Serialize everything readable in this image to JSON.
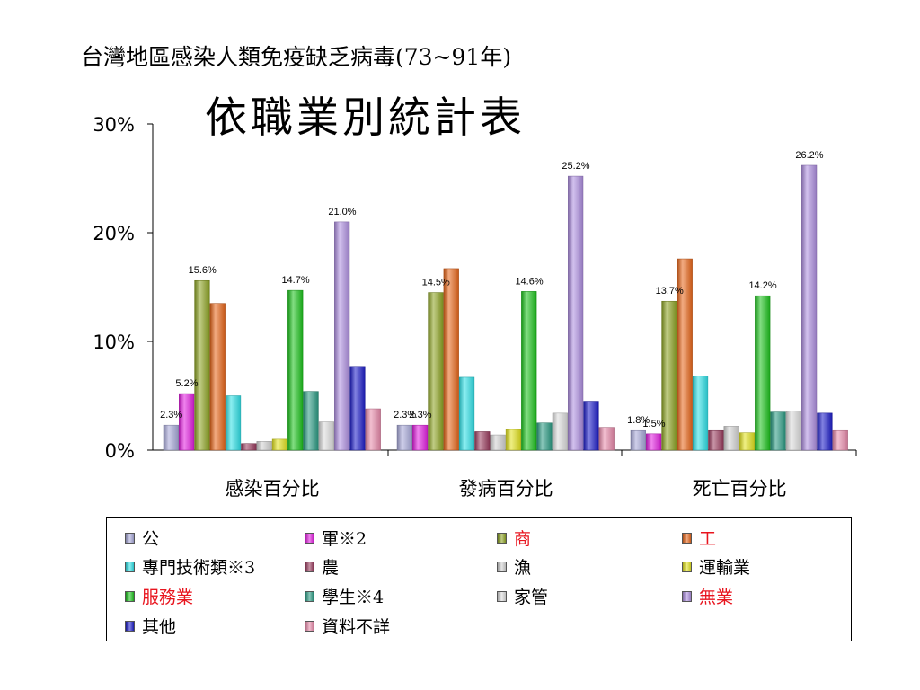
{
  "title_line1": "台灣地區感染人類免疫缺乏病毒(73~91年)",
  "title_line2": "依職業別統計表",
  "chart_data": {
    "type": "bar",
    "ylim": [
      0,
      30
    ],
    "yticks": [
      "0%",
      "10%",
      "20%",
      "30%"
    ],
    "ytick_values": [
      0,
      10,
      20,
      30
    ],
    "categories": [
      "感染百分比",
      "發病百分比",
      "死亡百分比"
    ],
    "series": [
      {
        "name": "公",
        "color": "#a7a8d8",
        "legend_red": false,
        "values": [
          2.3,
          2.3,
          1.8
        ],
        "labels": [
          "2.3%",
          "2.3%",
          "1.8%"
        ]
      },
      {
        "name": "軍※2",
        "color": "#e21ee0",
        "legend_red": false,
        "values": [
          5.2,
          2.3,
          1.5
        ],
        "labels": [
          "5.2%",
          "2.3%",
          "1.5%"
        ]
      },
      {
        "name": "商",
        "color": "#8ca222",
        "legend_red": true,
        "values": [
          15.6,
          14.5,
          13.7
        ],
        "labels": [
          "15.6%",
          "14.5%",
          "13.7%"
        ]
      },
      {
        "name": "工",
        "color": "#e8661a",
        "legend_red": true,
        "values": [
          13.5,
          16.7,
          17.6
        ],
        "labels": [
          "",
          "",
          ""
        ]
      },
      {
        "name": "專門技術類※3",
        "color": "#2ee0e6",
        "legend_red": false,
        "values": [
          5.0,
          6.7,
          6.8
        ],
        "labels": [
          "",
          "",
          ""
        ]
      },
      {
        "name": "農",
        "color": "#9a3c5e",
        "legend_red": false,
        "values": [
          0.6,
          1.7,
          1.8
        ],
        "labels": [
          "",
          "",
          ""
        ]
      },
      {
        "name": "漁",
        "color": "#d2d2d2",
        "legend_red": false,
        "values": [
          0.8,
          1.4,
          2.2
        ],
        "labels": [
          "",
          "",
          ""
        ]
      },
      {
        "name": "運輸業",
        "color": "#e2e21e",
        "legend_red": false,
        "values": [
          1.0,
          1.9,
          1.6
        ],
        "labels": [
          "",
          "",
          ""
        ]
      },
      {
        "name": "服務業",
        "color": "#1cc21c",
        "legend_red": true,
        "values": [
          14.7,
          14.6,
          14.2
        ],
        "labels": [
          "14.7%",
          "14.6%",
          "14.2%"
        ]
      },
      {
        "name": "學生※4",
        "color": "#2a9a82",
        "legend_red": false,
        "values": [
          5.4,
          2.5,
          3.5
        ],
        "labels": [
          "",
          "",
          ""
        ]
      },
      {
        "name": "家管",
        "color": "#dcdcdc",
        "legend_red": false,
        "values": [
          2.6,
          3.4,
          3.6
        ],
        "labels": [
          "",
          "",
          ""
        ]
      },
      {
        "name": "無業",
        "color": "#ae8ee0",
        "legend_red": true,
        "values": [
          21.0,
          25.2,
          26.2
        ],
        "labels": [
          "21.0%",
          "25.2%",
          "26.2%"
        ]
      },
      {
        "name": "其他",
        "color": "#1c1cc8",
        "legend_red": false,
        "values": [
          7.7,
          4.5,
          3.4
        ],
        "labels": [
          "",
          "",
          ""
        ]
      },
      {
        "name": "資料不詳",
        "color": "#e88aaa",
        "legend_red": false,
        "values": [
          3.8,
          2.1,
          1.8
        ],
        "labels": [
          "",
          "",
          ""
        ]
      }
    ]
  }
}
